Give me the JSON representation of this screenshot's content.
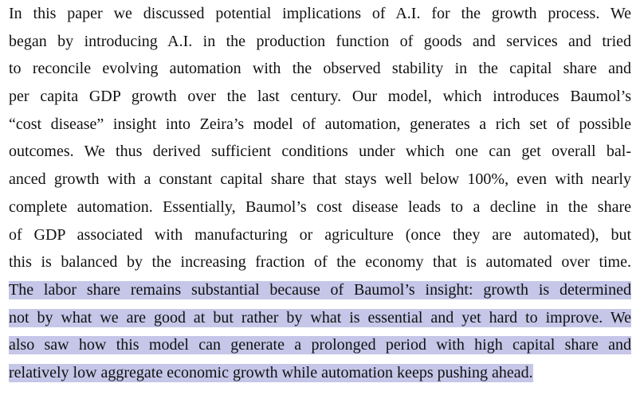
{
  "paragraph": {
    "lines": [
      "In this paper we discussed potential implications of A.I. for the growth process.  We",
      "began by introducing A.I. in the production function of goods and services and tried",
      "to reconcile evolving automation with the observed stability in the capital share and",
      "per capita GDP growth over the last century.  Our model, which introduces Baumol’s",
      "“cost disease” insight into Zeira’s model of automation, generates a rich set of possible",
      "outcomes. We thus derived sufficient conditions under which one can get overall bal-",
      "anced growth with a constant capital share that stays well below 100%, even with nearly",
      "complete automation. Essentially, Baumol’s cost disease leads to a decline in the share",
      "of GDP associated with manufacturing or agriculture (once they are automated), but",
      "this is balanced by the increasing fraction of the economy that is automated over time."
    ],
    "highlighted_lines": [
      "The labor share remains substantial because of Baumol’s insight: growth is determined",
      "not by what we are good at but rather by what is essential and yet hard to improve. We",
      "also saw how this model can generate a prolonged period with high capital share and",
      "relatively low aggregate economic growth while automation keeps pushing ahead."
    ],
    "highlight_color": "#c5c6e8"
  }
}
